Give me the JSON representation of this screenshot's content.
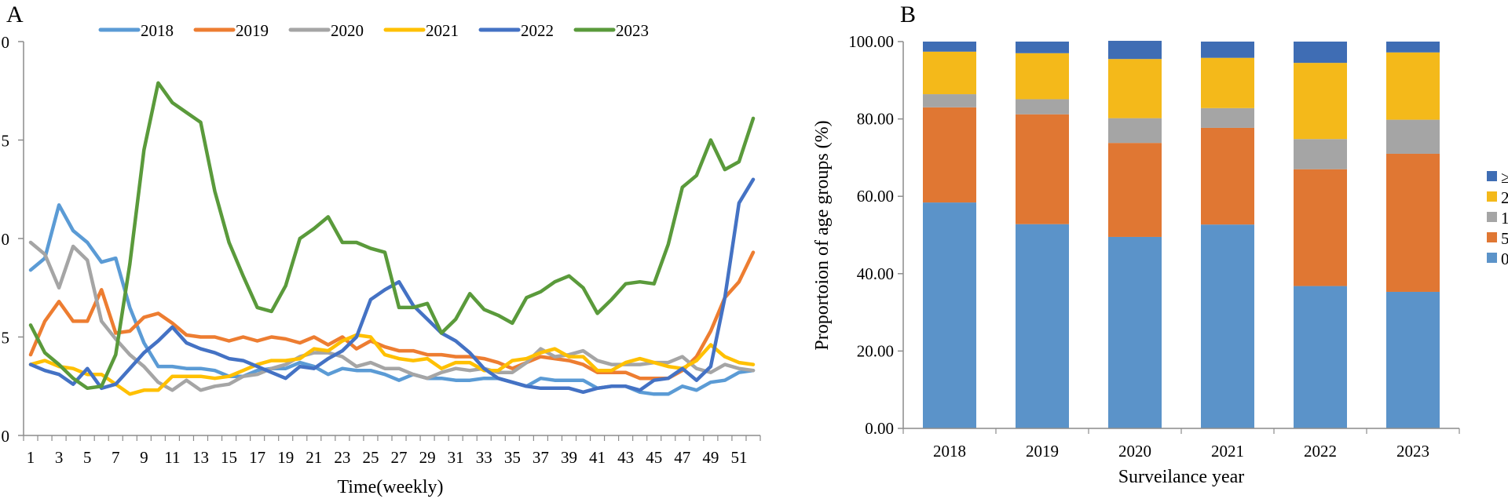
{
  "chart_data": [
    {
      "panel": "A",
      "type": "line",
      "title": "",
      "xlabel": "Time(weekly)",
      "ylabel": "",
      "ylim": [
        0,
        20
      ],
      "yticks": [
        0,
        5,
        10,
        15,
        20
      ],
      "ytick_labels_visible": [
        "0",
        "5",
        "0",
        "5",
        "0"
      ],
      "xtick_labels": [
        "1",
        "3",
        "5",
        "7",
        "9",
        "11",
        "13",
        "15",
        "17",
        "19",
        "21",
        "23",
        "25",
        "27",
        "29",
        "31",
        "33",
        "35",
        "37",
        "39",
        "41",
        "43",
        "45",
        "47",
        "49",
        "51"
      ],
      "x": [
        1,
        2,
        3,
        4,
        5,
        6,
        7,
        8,
        9,
        10,
        11,
        12,
        13,
        14,
        15,
        16,
        17,
        18,
        19,
        20,
        21,
        22,
        23,
        24,
        25,
        26,
        27,
        28,
        29,
        30,
        31,
        32,
        33,
        34,
        35,
        36,
        37,
        38,
        39,
        40,
        41,
        42,
        43,
        44,
        45,
        46,
        47,
        48,
        49,
        50,
        51,
        52
      ],
      "grid": false,
      "legend_position": "top",
      "series": [
        {
          "name": "2018",
          "color": "#5b9bd5",
          "values": [
            8.4,
            9.0,
            11.7,
            10.4,
            9.8,
            8.8,
            9.0,
            6.5,
            4.7,
            3.5,
            3.5,
            3.4,
            3.4,
            3.3,
            3.0,
            3.0,
            3.3,
            3.4,
            3.4,
            3.7,
            3.5,
            3.1,
            3.4,
            3.3,
            3.3,
            3.1,
            2.8,
            3.1,
            2.9,
            2.9,
            2.8,
            2.8,
            2.9,
            2.9,
            2.7,
            2.5,
            2.9,
            2.8,
            2.8,
            2.8,
            2.4,
            2.5,
            2.5,
            2.2,
            2.1,
            2.1,
            2.5,
            2.3,
            2.7,
            2.8,
            3.2,
            3.3
          ]
        },
        {
          "name": "2019",
          "color": "#ed7d31",
          "values": [
            4.1,
            5.8,
            6.8,
            5.8,
            5.8,
            7.4,
            5.2,
            5.3,
            6.0,
            6.2,
            5.7,
            5.1,
            5.0,
            5.0,
            4.8,
            5.0,
            4.8,
            5.0,
            4.9,
            4.7,
            5.0,
            4.6,
            5.0,
            4.4,
            4.8,
            4.5,
            4.3,
            4.3,
            4.1,
            4.1,
            4.0,
            4.0,
            3.9,
            3.7,
            3.4,
            3.7,
            4.0,
            3.9,
            3.8,
            3.6,
            3.2,
            3.2,
            3.2,
            2.9,
            2.9,
            2.9,
            3.3,
            4.0,
            5.3,
            7.0,
            7.8,
            9.3
          ]
        },
        {
          "name": "2020",
          "color": "#a5a5a5",
          "values": [
            9.8,
            9.2,
            7.5,
            9.6,
            8.9,
            5.8,
            4.9,
            4.1,
            3.5,
            2.7,
            2.3,
            2.8,
            2.3,
            2.5,
            2.6,
            3.0,
            3.1,
            3.4,
            3.6,
            4.0,
            4.2,
            4.2,
            4.0,
            3.5,
            3.7,
            3.4,
            3.4,
            3.1,
            2.9,
            3.2,
            3.4,
            3.3,
            3.4,
            3.2,
            3.2,
            3.7,
            4.4,
            4.0,
            4.1,
            4.3,
            3.8,
            3.6,
            3.6,
            3.6,
            3.7,
            3.7,
            4.0,
            3.4,
            3.2,
            3.6,
            3.4,
            3.3
          ]
        },
        {
          "name": "2021",
          "color": "#ffc000",
          "values": [
            3.6,
            3.8,
            3.5,
            3.4,
            3.1,
            3.1,
            2.6,
            2.1,
            2.3,
            2.3,
            3.0,
            3.0,
            3.0,
            2.9,
            3.0,
            3.3,
            3.6,
            3.8,
            3.8,
            3.9,
            4.4,
            4.3,
            4.8,
            5.1,
            5.0,
            4.1,
            3.9,
            3.8,
            3.9,
            3.4,
            3.7,
            3.7,
            3.3,
            3.3,
            3.8,
            3.9,
            4.2,
            4.4,
            4.0,
            4.0,
            3.3,
            3.3,
            3.7,
            3.9,
            3.7,
            3.5,
            3.4,
            3.8,
            4.6,
            4.0,
            3.7,
            3.6
          ]
        },
        {
          "name": "2022",
          "color": "#4472c4",
          "values": [
            3.6,
            3.3,
            3.1,
            2.6,
            3.4,
            2.4,
            2.6,
            3.4,
            4.2,
            4.8,
            5.5,
            4.7,
            4.4,
            4.2,
            3.9,
            3.8,
            3.5,
            3.2,
            2.9,
            3.5,
            3.4,
            3.9,
            4.3,
            5.0,
            6.9,
            7.4,
            7.8,
            6.6,
            5.9,
            5.2,
            4.8,
            4.2,
            3.4,
            2.9,
            2.7,
            2.5,
            2.4,
            2.4,
            2.4,
            2.2,
            2.4,
            2.5,
            2.5,
            2.3,
            2.8,
            2.9,
            3.4,
            2.8,
            3.5,
            7.0,
            11.8,
            13.0
          ]
        },
        {
          "name": "2023",
          "color": "#5a9a3b",
          "values": [
            5.6,
            4.2,
            3.6,
            2.9,
            2.4,
            2.5,
            4.1,
            8.7,
            14.5,
            17.9,
            16.9,
            16.4,
            15.9,
            12.4,
            9.8,
            8.1,
            6.5,
            6.3,
            7.6,
            10.0,
            10.5,
            11.1,
            9.8,
            9.8,
            9.5,
            9.3,
            6.5,
            6.5,
            6.7,
            5.2,
            5.9,
            7.2,
            6.4,
            6.1,
            5.7,
            7.0,
            7.3,
            7.8,
            8.1,
            7.5,
            6.2,
            6.9,
            7.7,
            7.8,
            7.7,
            9.7,
            12.6,
            13.2,
            15.0,
            13.5,
            13.9,
            16.1
          ]
        }
      ]
    },
    {
      "panel": "B",
      "type": "bar",
      "stacked": true,
      "title": "",
      "xlabel": "Surveilance year",
      "ylabel": "Proportoion of age groups (%)",
      "ylim": [
        0,
        100
      ],
      "yticks": [
        0,
        20,
        40,
        60,
        80,
        100
      ],
      "ytick_labels": [
        "0.00",
        "20.00",
        "40.00",
        "60.00",
        "80.00",
        "100.00"
      ],
      "categories": [
        "2018",
        "2019",
        "2020",
        "2021",
        "2022",
        "2023"
      ],
      "grid": false,
      "legend_position": "right",
      "series": [
        {
          "name": "0",
          "color": "#5b93c9",
          "values": [
            58.4,
            52.8,
            49.5,
            52.7,
            36.8,
            35.3
          ]
        },
        {
          "name": "5",
          "color": "#e07733",
          "values": [
            24.6,
            28.4,
            24.3,
            25.0,
            30.2,
            35.7
          ]
        },
        {
          "name": "1",
          "color": "#a5a5a5",
          "values": [
            3.4,
            3.9,
            6.4,
            5.1,
            7.8,
            8.8
          ]
        },
        {
          "name": "2",
          "color": "#f4b91a",
          "values": [
            11.0,
            11.9,
            15.3,
            13.0,
            19.7,
            17.4
          ]
        },
        {
          "name": "≥",
          "color": "#3f6db4",
          "values": [
            2.6,
            3.0,
            4.7,
            4.2,
            5.5,
            2.8
          ]
        }
      ],
      "legend_order": [
        "≥",
        "2",
        "1",
        "5",
        "0"
      ]
    }
  ],
  "panels": {
    "a_label": "A",
    "b_label": "B"
  }
}
